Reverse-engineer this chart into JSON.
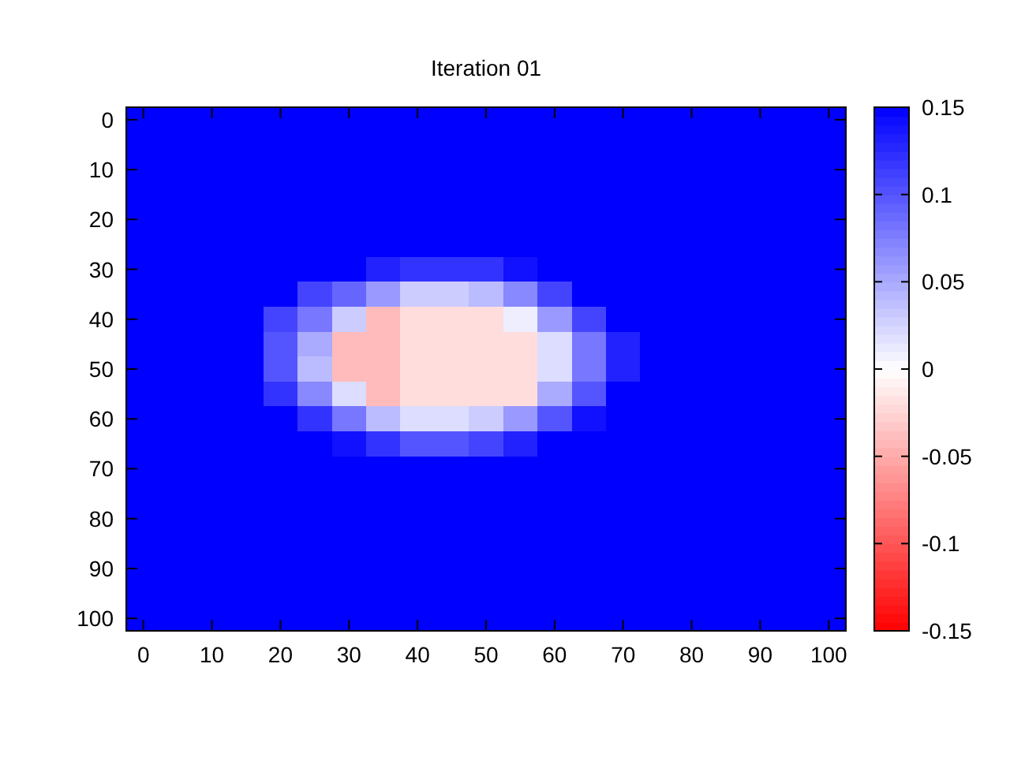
{
  "chart_data": {
    "type": "heatmap",
    "title": "Iteration 01",
    "categories": [
      "0",
      null,
      "10",
      null,
      "20",
      null,
      "30",
      null,
      "40",
      null,
      "50",
      null,
      "60",
      null,
      "70",
      null,
      "80",
      null,
      "90",
      null,
      "100"
    ],
    "y_categories": [
      "0",
      null,
      "10",
      null,
      "20",
      null,
      "30",
      null,
      "40",
      null,
      "50",
      null,
      "60",
      null,
      "70",
      null,
      "80",
      null,
      "90",
      null,
      "100"
    ],
    "cells": [
      [
        0.15,
        0.15,
        0.15,
        0.15,
        0.15,
        0.15,
        0.15,
        0.15,
        0.15,
        0.15,
        0.15,
        0.15,
        0.15,
        0.15,
        0.15,
        0.15,
        0.15,
        0.15,
        0.15,
        0.15,
        0.15
      ],
      [
        0.15,
        0.15,
        0.15,
        0.15,
        0.15,
        0.15,
        0.15,
        0.15,
        0.15,
        0.15,
        0.15,
        0.15,
        0.15,
        0.15,
        0.15,
        0.15,
        0.15,
        0.15,
        0.15,
        0.15,
        0.15
      ],
      [
        0.15,
        0.15,
        0.15,
        0.15,
        0.15,
        0.15,
        0.15,
        0.15,
        0.15,
        0.15,
        0.15,
        0.15,
        0.15,
        0.15,
        0.15,
        0.15,
        0.15,
        0.15,
        0.15,
        0.15,
        0.15
      ],
      [
        0.15,
        0.15,
        0.15,
        0.15,
        0.15,
        0.15,
        0.15,
        0.15,
        0.15,
        0.15,
        0.15,
        0.15,
        0.15,
        0.15,
        0.15,
        0.15,
        0.15,
        0.15,
        0.15,
        0.15,
        0.15
      ],
      [
        0.15,
        0.15,
        0.15,
        0.15,
        0.15,
        0.15,
        0.15,
        0.15,
        0.15,
        0.15,
        0.15,
        0.15,
        0.15,
        0.15,
        0.15,
        0.15,
        0.15,
        0.15,
        0.15,
        0.15,
        0.15
      ],
      [
        0.15,
        0.15,
        0.15,
        0.15,
        0.15,
        0.15,
        0.15,
        0.15,
        0.15,
        0.15,
        0.15,
        0.15,
        0.15,
        0.15,
        0.15,
        0.15,
        0.15,
        0.15,
        0.15,
        0.15,
        0.15
      ],
      [
        0.15,
        0.15,
        0.15,
        0.15,
        0.15,
        0.15,
        0.15,
        0.13,
        0.12,
        0.12,
        0.12,
        0.14,
        0.15,
        0.15,
        0.15,
        0.15,
        0.15,
        0.15,
        0.15,
        0.15,
        0.15
      ],
      [
        0.15,
        0.15,
        0.15,
        0.15,
        0.15,
        0.11,
        0.09,
        0.06,
        0.03,
        0.03,
        0.04,
        0.07,
        0.11,
        0.15,
        0.15,
        0.15,
        0.15,
        0.15,
        0.15,
        0.15,
        0.15
      ],
      [
        0.15,
        0.15,
        0.15,
        0.15,
        0.11,
        0.08,
        0.03,
        -0.04,
        -0.02,
        -0.02,
        -0.02,
        0.01,
        0.06,
        0.11,
        0.15,
        0.15,
        0.15,
        0.15,
        0.15,
        0.15,
        0.15
      ],
      [
        0.15,
        0.15,
        0.15,
        0.15,
        0.1,
        0.05,
        -0.04,
        -0.04,
        -0.02,
        -0.02,
        -0.02,
        -0.02,
        0.02,
        0.08,
        0.13,
        0.15,
        0.15,
        0.15,
        0.15,
        0.15,
        0.15
      ],
      [
        0.15,
        0.15,
        0.15,
        0.15,
        0.1,
        0.04,
        -0.04,
        -0.04,
        -0.02,
        -0.02,
        -0.02,
        -0.02,
        0.02,
        0.08,
        0.13,
        0.15,
        0.15,
        0.15,
        0.15,
        0.15,
        0.15
      ],
      [
        0.15,
        0.15,
        0.15,
        0.15,
        0.12,
        0.07,
        0.02,
        -0.04,
        -0.02,
        -0.02,
        -0.02,
        -0.02,
        0.05,
        0.1,
        0.15,
        0.15,
        0.15,
        0.15,
        0.15,
        0.15,
        0.15
      ],
      [
        0.15,
        0.15,
        0.15,
        0.15,
        0.15,
        0.12,
        0.08,
        0.04,
        0.02,
        0.02,
        0.03,
        0.06,
        0.1,
        0.14,
        0.15,
        0.15,
        0.15,
        0.15,
        0.15,
        0.15,
        0.15
      ],
      [
        0.15,
        0.15,
        0.15,
        0.15,
        0.15,
        0.15,
        0.14,
        0.12,
        0.1,
        0.1,
        0.11,
        0.13,
        0.15,
        0.15,
        0.15,
        0.15,
        0.15,
        0.15,
        0.15,
        0.15,
        0.15
      ],
      [
        0.15,
        0.15,
        0.15,
        0.15,
        0.15,
        0.15,
        0.15,
        0.15,
        0.15,
        0.15,
        0.15,
        0.15,
        0.15,
        0.15,
        0.15,
        0.15,
        0.15,
        0.15,
        0.15,
        0.15,
        0.15
      ],
      [
        0.15,
        0.15,
        0.15,
        0.15,
        0.15,
        0.15,
        0.15,
        0.15,
        0.15,
        0.15,
        0.15,
        0.15,
        0.15,
        0.15,
        0.15,
        0.15,
        0.15,
        0.15,
        0.15,
        0.15,
        0.15
      ],
      [
        0.15,
        0.15,
        0.15,
        0.15,
        0.15,
        0.15,
        0.15,
        0.15,
        0.15,
        0.15,
        0.15,
        0.15,
        0.15,
        0.15,
        0.15,
        0.15,
        0.15,
        0.15,
        0.15,
        0.15,
        0.15
      ],
      [
        0.15,
        0.15,
        0.15,
        0.15,
        0.15,
        0.15,
        0.15,
        0.15,
        0.15,
        0.15,
        0.15,
        0.15,
        0.15,
        0.15,
        0.15,
        0.15,
        0.15,
        0.15,
        0.15,
        0.15,
        0.15
      ],
      [
        0.15,
        0.15,
        0.15,
        0.15,
        0.15,
        0.15,
        0.15,
        0.15,
        0.15,
        0.15,
        0.15,
        0.15,
        0.15,
        0.15,
        0.15,
        0.15,
        0.15,
        0.15,
        0.15,
        0.15,
        0.15
      ],
      [
        0.15,
        0.15,
        0.15,
        0.15,
        0.15,
        0.15,
        0.15,
        0.15,
        0.15,
        0.15,
        0.15,
        0.15,
        0.15,
        0.15,
        0.15,
        0.15,
        0.15,
        0.15,
        0.15,
        0.15,
        0.15
      ],
      [
        0.15,
        0.15,
        0.15,
        0.15,
        0.15,
        0.15,
        0.15,
        0.15,
        0.15,
        0.15,
        0.15,
        0.15,
        0.15,
        0.15,
        0.15,
        0.15,
        0.15,
        0.15,
        0.15,
        0.15,
        0.15
      ]
    ],
    "clim": [
      -0.15,
      0.15
    ],
    "cticks": [
      -0.15,
      -0.1,
      -0.05,
      0,
      0.05,
      0.1,
      0.15
    ]
  }
}
